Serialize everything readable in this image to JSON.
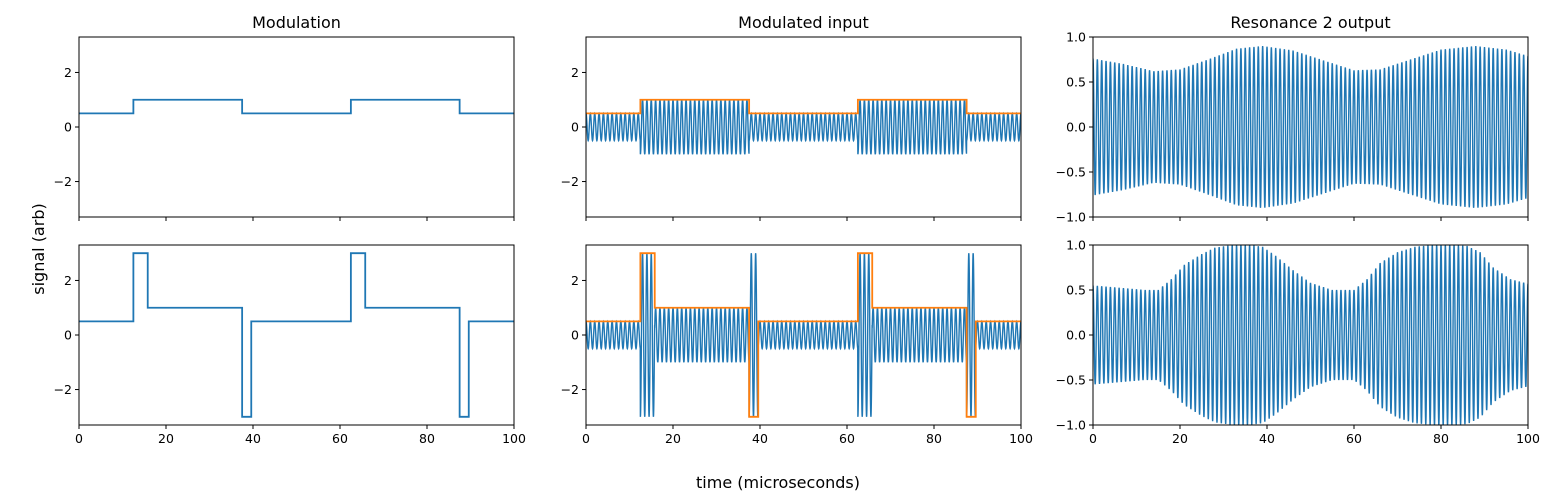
{
  "figure": {
    "xlabel": "time (microseconds)",
    "ylabel": "signal (arb)"
  },
  "colors": {
    "signal": "#1f77b4",
    "envelope": "#ff7f0e",
    "frame": "#000000",
    "background": "#ffffff"
  },
  "chart_data": [
    {
      "type": "line",
      "panel": "row1-col1",
      "title": "Modulation",
      "xlim": [
        0,
        100
      ],
      "ylim": [
        -3.3,
        3.3
      ],
      "xticks": [
        0,
        20,
        40,
        60,
        80,
        100
      ],
      "yticks": [
        -2,
        0,
        2
      ],
      "show_xticklabels": false,
      "series": [
        {
          "kind": "step",
          "color": "#1f77b4",
          "x": [
            0,
            12.5,
            12.5,
            37.5,
            37.5,
            62.5,
            62.5,
            87.5,
            87.5,
            100
          ],
          "y": [
            0.5,
            0.5,
            1,
            1,
            0.5,
            0.5,
            1,
            1,
            0.5,
            0.5
          ]
        }
      ]
    },
    {
      "type": "line",
      "panel": "row1-col2",
      "title": "Modulated input",
      "xlim": [
        0,
        100
      ],
      "ylim": [
        -3.3,
        3.3
      ],
      "xticks": [
        0,
        20,
        40,
        60,
        80,
        100
      ],
      "yticks": [
        -2,
        0,
        2
      ],
      "show_xticklabels": false,
      "series": [
        {
          "kind": "carrier",
          "color": "#1f77b4",
          "cycles_per_unit": 1.0,
          "envelope_x": [
            0,
            12.5,
            12.5,
            37.5,
            37.5,
            62.5,
            62.5,
            87.5,
            87.5,
            100
          ],
          "envelope_y": [
            0.5,
            0.5,
            1,
            1,
            0.5,
            0.5,
            1,
            1,
            0.5,
            0.5
          ]
        },
        {
          "kind": "step",
          "color": "#ff7f0e",
          "x": [
            0,
            12.5,
            12.5,
            37.5,
            37.5,
            62.5,
            62.5,
            87.5,
            87.5,
            100
          ],
          "y": [
            0.5,
            0.5,
            1,
            1,
            0.5,
            0.5,
            1,
            1,
            0.5,
            0.5
          ]
        }
      ]
    },
    {
      "type": "line",
      "panel": "row1-col3",
      "title": "Resonance 2 output",
      "xlim": [
        0,
        100
      ],
      "ylim": [
        -1.0,
        1.0
      ],
      "xticks": [
        0,
        20,
        40,
        60,
        80,
        100
      ],
      "yticks": [
        -1.0,
        -0.5,
        0.0,
        0.5,
        1.0
      ],
      "show_xticklabels": false,
      "series": [
        {
          "kind": "carrier",
          "color": "#1f77b4",
          "cycles_per_unit": 1.0,
          "envelope_x": [
            0,
            7,
            14,
            20,
            27,
            33,
            39,
            46,
            53,
            60,
            66,
            73,
            80,
            88,
            95,
            100
          ],
          "envelope_y": [
            0.76,
            0.7,
            0.62,
            0.64,
            0.76,
            0.87,
            0.9,
            0.85,
            0.74,
            0.63,
            0.64,
            0.75,
            0.86,
            0.9,
            0.86,
            0.79
          ]
        }
      ]
    },
    {
      "type": "line",
      "panel": "row2-col1",
      "title": "",
      "xlim": [
        0,
        100
      ],
      "ylim": [
        -3.3,
        3.3
      ],
      "xticks": [
        0,
        20,
        40,
        60,
        80,
        100
      ],
      "yticks": [
        -2,
        0,
        2
      ],
      "show_xticklabels": true,
      "series": [
        {
          "kind": "step",
          "color": "#1f77b4",
          "x": [
            0,
            12.5,
            12.5,
            15.8,
            15.8,
            37.5,
            37.5,
            39.6,
            39.6,
            62.5,
            62.5,
            65.8,
            65.8,
            87.5,
            87.5,
            89.6,
            89.6,
            100
          ],
          "y": [
            0.5,
            0.5,
            3,
            3,
            1,
            1,
            -3,
            -3,
            0.5,
            0.5,
            3,
            3,
            1,
            1,
            -3,
            -3,
            0.5,
            0.5
          ]
        }
      ]
    },
    {
      "type": "line",
      "panel": "row2-col2",
      "title": "",
      "xlim": [
        0,
        100
      ],
      "ylim": [
        -3.3,
        3.3
      ],
      "xticks": [
        0,
        20,
        40,
        60,
        80,
        100
      ],
      "yticks": [
        -2,
        0,
        2
      ],
      "show_xticklabels": true,
      "series": [
        {
          "kind": "carrier",
          "color": "#1f77b4",
          "cycles_per_unit": 1.0,
          "envelope_x": [
            0,
            12.5,
            12.5,
            15.8,
            15.8,
            37.5,
            37.5,
            39.6,
            39.6,
            62.5,
            62.5,
            65.8,
            65.8,
            87.5,
            87.5,
            89.6,
            89.6,
            100
          ],
          "envelope_y": [
            0.5,
            0.5,
            3,
            3,
            1,
            1,
            3,
            3,
            0.5,
            0.5,
            3,
            3,
            1,
            1,
            3,
            3,
            0.5,
            0.5
          ]
        },
        {
          "kind": "step",
          "color": "#ff7f0e",
          "x": [
            0,
            12.5,
            12.5,
            15.8,
            15.8,
            37.5,
            37.5,
            39.6,
            39.6,
            62.5,
            62.5,
            65.8,
            65.8,
            87.5,
            87.5,
            89.6,
            89.6,
            100
          ],
          "y": [
            0.5,
            0.5,
            3,
            3,
            1,
            1,
            -3,
            -3,
            0.5,
            0.5,
            3,
            3,
            1,
            1,
            -3,
            -3,
            0.5,
            0.5
          ]
        }
      ]
    },
    {
      "type": "line",
      "panel": "row2-col3",
      "title": "",
      "xlim": [
        0,
        100
      ],
      "ylim": [
        -1.0,
        1.0
      ],
      "xticks": [
        0,
        20,
        40,
        60,
        80,
        100
      ],
      "yticks": [
        -1.0,
        -0.5,
        0.0,
        0.5,
        1.0
      ],
      "show_xticklabels": true,
      "series": [
        {
          "kind": "carrier",
          "color": "#1f77b4",
          "cycles_per_unit": 1.0,
          "envelope_x": [
            0,
            12,
            15,
            18,
            21,
            25,
            28,
            32,
            36,
            39,
            42,
            46,
            50,
            55,
            60,
            63,
            66,
            70,
            74,
            78,
            82,
            86,
            89,
            92,
            96,
            100
          ],
          "envelope_y": [
            0.55,
            0.5,
            0.5,
            0.62,
            0.78,
            0.9,
            0.97,
            1.0,
            1.0,
            0.98,
            0.88,
            0.72,
            0.58,
            0.5,
            0.5,
            0.62,
            0.8,
            0.92,
            0.98,
            1.0,
            1.0,
            0.99,
            0.92,
            0.75,
            0.62,
            0.57
          ]
        }
      ]
    }
  ]
}
